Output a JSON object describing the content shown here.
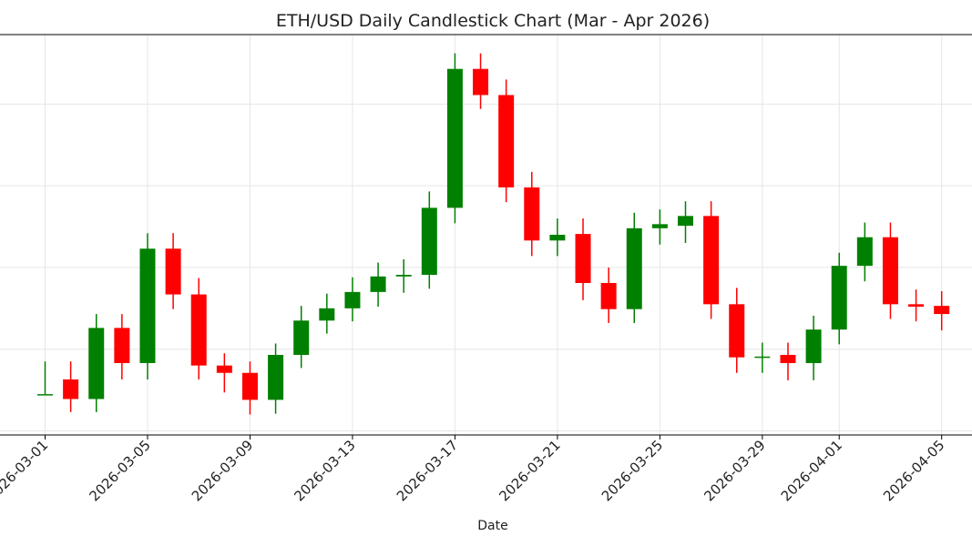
{
  "chart_data": {
    "type": "candlestick",
    "title": "ETH/USD Daily Candlestick Chart (Mar - Apr 2026)",
    "xlabel": "Date",
    "ylabel": "",
    "grid": true,
    "colors": {
      "up": "#008000",
      "down": "#ff0000"
    },
    "y_ticks_shown": false,
    "ylim": [
      1000,
      5900
    ],
    "x_ticks": [
      "2026-03-01",
      "2026-03-05",
      "2026-03-09",
      "2026-03-13",
      "2026-03-17",
      "2026-03-21",
      "2026-03-25",
      "2026-03-29",
      "2026-04-01",
      "2026-04-05"
    ],
    "candles": [
      {
        "date": "2026-03-01",
        "open": 1500,
        "high": 1900,
        "low": 1500,
        "close": 1500
      },
      {
        "date": "2026-03-02",
        "open": 1680,
        "high": 1900,
        "low": 1280,
        "close": 1440
      },
      {
        "date": "2026-03-03",
        "open": 1440,
        "high": 2480,
        "low": 1280,
        "close": 2310
      },
      {
        "date": "2026-03-04",
        "open": 2310,
        "high": 2480,
        "low": 1680,
        "close": 1880
      },
      {
        "date": "2026-03-05",
        "open": 1880,
        "high": 3470,
        "low": 1680,
        "close": 3280
      },
      {
        "date": "2026-03-06",
        "open": 3280,
        "high": 3470,
        "low": 2540,
        "close": 2720
      },
      {
        "date": "2026-03-07",
        "open": 2720,
        "high": 2920,
        "low": 1680,
        "close": 1850
      },
      {
        "date": "2026-03-08",
        "open": 1850,
        "high": 2000,
        "low": 1520,
        "close": 1760
      },
      {
        "date": "2026-03-09",
        "open": 1760,
        "high": 1900,
        "low": 1250,
        "close": 1430
      },
      {
        "date": "2026-03-10",
        "open": 1430,
        "high": 2120,
        "low": 1260,
        "close": 1980
      },
      {
        "date": "2026-03-11",
        "open": 1980,
        "high": 2580,
        "low": 1820,
        "close": 2400
      },
      {
        "date": "2026-03-12",
        "open": 2400,
        "high": 2730,
        "low": 2240,
        "close": 2550
      },
      {
        "date": "2026-03-13",
        "open": 2550,
        "high": 2930,
        "low": 2390,
        "close": 2750
      },
      {
        "date": "2026-03-14",
        "open": 2750,
        "high": 3110,
        "low": 2570,
        "close": 2940
      },
      {
        "date": "2026-03-15",
        "open": 2940,
        "high": 3150,
        "low": 2740,
        "close": 2960
      },
      {
        "date": "2026-03-16",
        "open": 2960,
        "high": 3980,
        "low": 2790,
        "close": 3780
      },
      {
        "date": "2026-03-17",
        "open": 3780,
        "high": 5670,
        "low": 3590,
        "close": 5480
      },
      {
        "date": "2026-03-18",
        "open": 5480,
        "high": 5670,
        "low": 4990,
        "close": 5160
      },
      {
        "date": "2026-03-19",
        "open": 5160,
        "high": 5350,
        "low": 3850,
        "close": 4030
      },
      {
        "date": "2026-03-20",
        "open": 4030,
        "high": 4220,
        "low": 3190,
        "close": 3380
      },
      {
        "date": "2026-03-21",
        "open": 3380,
        "high": 3650,
        "low": 3190,
        "close": 3450
      },
      {
        "date": "2026-03-22",
        "open": 3460,
        "high": 3650,
        "low": 2650,
        "close": 2860
      },
      {
        "date": "2026-03-23",
        "open": 2860,
        "high": 3050,
        "low": 2370,
        "close": 2540
      },
      {
        "date": "2026-03-24",
        "open": 2540,
        "high": 3720,
        "low": 2370,
        "close": 3530
      },
      {
        "date": "2026-03-25",
        "open": 3530,
        "high": 3760,
        "low": 3330,
        "close": 3580
      },
      {
        "date": "2026-03-26",
        "open": 3560,
        "high": 3860,
        "low": 3350,
        "close": 3680
      },
      {
        "date": "2026-03-27",
        "open": 3680,
        "high": 3860,
        "low": 2420,
        "close": 2600
      },
      {
        "date": "2026-03-28",
        "open": 2600,
        "high": 2800,
        "low": 1760,
        "close": 1950
      },
      {
        "date": "2026-03-29",
        "open": 1950,
        "high": 2130,
        "low": 1760,
        "close": 1960
      },
      {
        "date": "2026-03-30",
        "open": 1980,
        "high": 2130,
        "low": 1670,
        "close": 1880
      },
      {
        "date": "2026-03-31",
        "open": 1880,
        "high": 2460,
        "low": 1670,
        "close": 2290
      },
      {
        "date": "2026-04-01",
        "open": 2290,
        "high": 3230,
        "low": 2110,
        "close": 3070
      },
      {
        "date": "2026-04-02",
        "open": 3070,
        "high": 3600,
        "low": 2880,
        "close": 3420
      },
      {
        "date": "2026-04-03",
        "open": 3420,
        "high": 3600,
        "low": 2420,
        "close": 2600
      },
      {
        "date": "2026-04-04",
        "open": 2600,
        "high": 2780,
        "low": 2390,
        "close": 2570
      },
      {
        "date": "2026-04-05",
        "open": 2580,
        "high": 2760,
        "low": 2280,
        "close": 2480
      }
    ]
  }
}
